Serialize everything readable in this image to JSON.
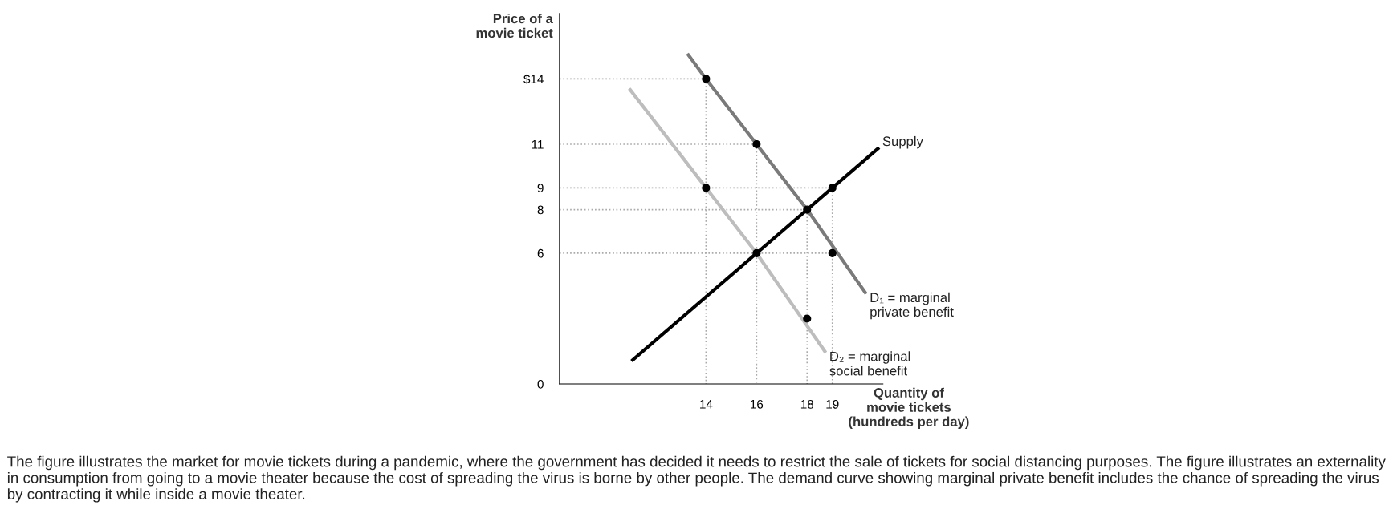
{
  "chart_data": {
    "type": "line",
    "xlabel": "Quantity of\nmovie tickets\n(hundreds per day)",
    "ylabel": "Price of a\nmovie ticket",
    "xlim": [
      8.2,
      21
    ],
    "ylim": [
      0,
      17
    ],
    "xticks": [
      14,
      16,
      18,
      19
    ],
    "yticks": [
      0,
      6,
      8,
      9,
      11,
      {
        "value": 14,
        "label": "$14"
      }
    ],
    "grid": false,
    "legend": false,
    "marker": "none",
    "line_style": "solid",
    "series": [
      {
        "type": "line",
        "line_style": "dotted",
        "color": "#aaaaaa",
        "x": [
          8.2,
          14
        ],
        "values": [
          14,
          14
        ]
      },
      {
        "type": "line",
        "line_style": "dotted",
        "color": "#aaaaaa",
        "x": [
          8.2,
          16
        ],
        "values": [
          11,
          11
        ]
      },
      {
        "type": "line",
        "line_style": "dotted",
        "color": "#aaaaaa",
        "x": [
          8.2,
          19
        ],
        "values": [
          9,
          9
        ]
      },
      {
        "type": "line",
        "line_style": "dotted",
        "color": "#aaaaaa",
        "x": [
          8.2,
          18
        ],
        "values": [
          8,
          8
        ]
      },
      {
        "type": "line",
        "line_style": "dotted",
        "color": "#aaaaaa",
        "x": [
          8.2,
          19
        ],
        "values": [
          6,
          6
        ]
      },
      {
        "type": "line",
        "line_style": "dotted",
        "color": "#aaaaaa",
        "x": [
          14,
          14
        ],
        "values": [
          14,
          0
        ]
      },
      {
        "type": "line",
        "line_style": "dotted",
        "color": "#aaaaaa",
        "x": [
          16,
          16
        ],
        "values": [
          11,
          0
        ]
      },
      {
        "type": "line",
        "line_style": "dotted",
        "color": "#aaaaaa",
        "x": [
          18,
          18
        ],
        "values": [
          8,
          0
        ]
      },
      {
        "type": "line",
        "line_style": "dotted",
        "color": "#aaaaaa",
        "x": [
          19,
          19
        ],
        "values": [
          9,
          0
        ]
      },
      {
        "color": "#bdbdbd",
        "x": [
          11.0,
          14,
          16,
          18.7
        ],
        "values": [
          13.5,
          9,
          6,
          1.5
        ]
      },
      {
        "color": "#7a7a7a",
        "x": [
          13.3,
          14,
          16,
          18,
          20.3
        ],
        "values": [
          15.1,
          14,
          11,
          8,
          4.2
        ]
      },
      {
        "color": "#000000",
        "x": [
          11.1,
          20.8
        ],
        "values": [
          1.1,
          10.8
        ]
      },
      {
        "type": "scatter",
        "marker": "circle",
        "color": "#000000",
        "x": [
          14,
          16,
          14,
          19,
          18,
          16,
          19,
          18
        ],
        "values": [
          14,
          11,
          9,
          9,
          8,
          6,
          6,
          3
        ]
      }
    ],
    "annotations": [
      {
        "text": "Supply",
        "x": 20.8,
        "y": 10.8
      },
      {
        "text": "D₁ = marginal\nprivate benefit",
        "x": 20.3,
        "y": 4.2
      },
      {
        "text": "D₂ = marginal\nsocial benefit",
        "x": 18.7,
        "y": 1.5
      },
      "The figure illustrates the market for movie tickets during a pandemic, where the government has decided it needs to restrict the sale of tickets for social distancing purposes. The figure illustrates an externality in consumption from going to a movie theater because the cost of spreading the virus is borne by other people. The demand curve showing marginal private benefit includes the chance of spreading the virus by contracting it while inside a movie theater."
    ]
  }
}
